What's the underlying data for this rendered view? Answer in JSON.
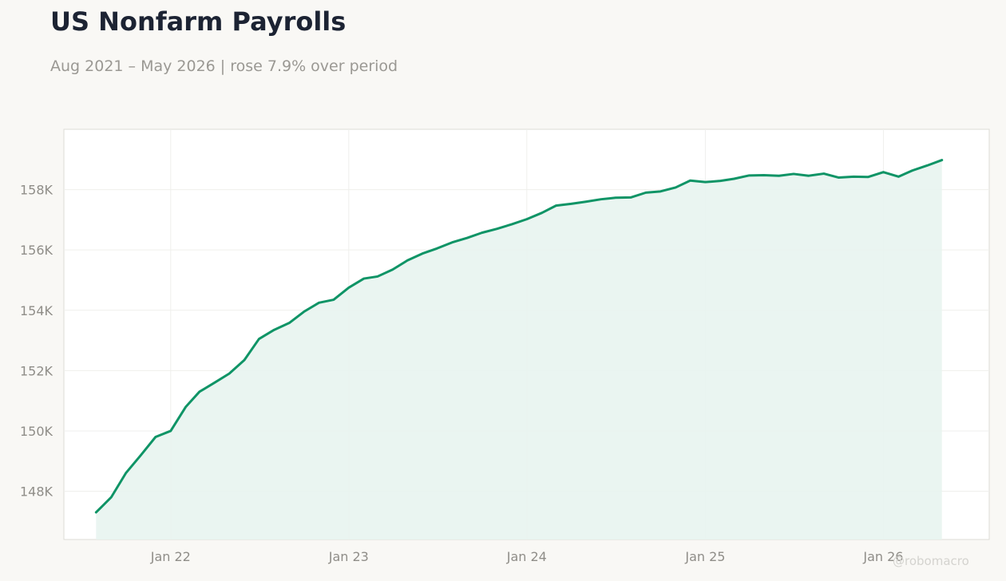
{
  "header": {
    "title": "US Nonfarm Payrolls",
    "subtitle": "Aug 2021 – May 2026 | rose 7.9% over period"
  },
  "watermark": "@robomacro",
  "colors": {
    "line": "#0f9466",
    "fill": "#e8f4ef",
    "plot_bg": "#ffffff",
    "page_bg": "#f9f8f5",
    "grid": "#efefec",
    "axis_border": "#dddcd6"
  },
  "chart_data": {
    "type": "area",
    "title": "US Nonfarm Payrolls",
    "subtitle": "Aug 2021 – May 2026 | rose 7.9% over period",
    "unit": "K",
    "x_start": "2021-08",
    "x_frequency": "monthly",
    "x_ticks": [
      {
        "date": "2022-01",
        "label": "Jan 22"
      },
      {
        "date": "2023-01",
        "label": "Jan 23"
      },
      {
        "date": "2024-01",
        "label": "Jan 24"
      },
      {
        "date": "2025-01",
        "label": "Jan 25"
      },
      {
        "date": "2026-01",
        "label": "Jan 26"
      }
    ],
    "y_ticks": [
      {
        "value": 148000,
        "label": "148K"
      },
      {
        "value": 150000,
        "label": "150K"
      },
      {
        "value": 152000,
        "label": "152K"
      },
      {
        "value": 154000,
        "label": "154K"
      },
      {
        "value": 156000,
        "label": "156K"
      },
      {
        "value": 158000,
        "label": "158K"
      }
    ],
    "ylim": [
      146400,
      160000
    ],
    "xlim": [
      "2021-05-27",
      "2026-08-06"
    ],
    "grid": true,
    "series": [
      {
        "values": [
          147300,
          147800,
          148600,
          149200,
          149800,
          150000,
          150800,
          151300,
          151600,
          151900,
          152350,
          153050,
          153350,
          153580,
          153950,
          154250,
          154350,
          154750,
          155050,
          155120,
          155350,
          155650,
          155880,
          156050,
          156250,
          156400,
          156570,
          156700,
          156850,
          157020,
          157230,
          157470,
          157530,
          157600,
          157680,
          157730,
          157740,
          157900,
          157940,
          158070,
          158300,
          158250,
          158290,
          158360,
          158470,
          158480,
          158460,
          158520,
          158460,
          158530,
          158400,
          158430,
          158420,
          158580,
          158430,
          158630,
          158800,
          158980
        ]
      }
    ]
  }
}
